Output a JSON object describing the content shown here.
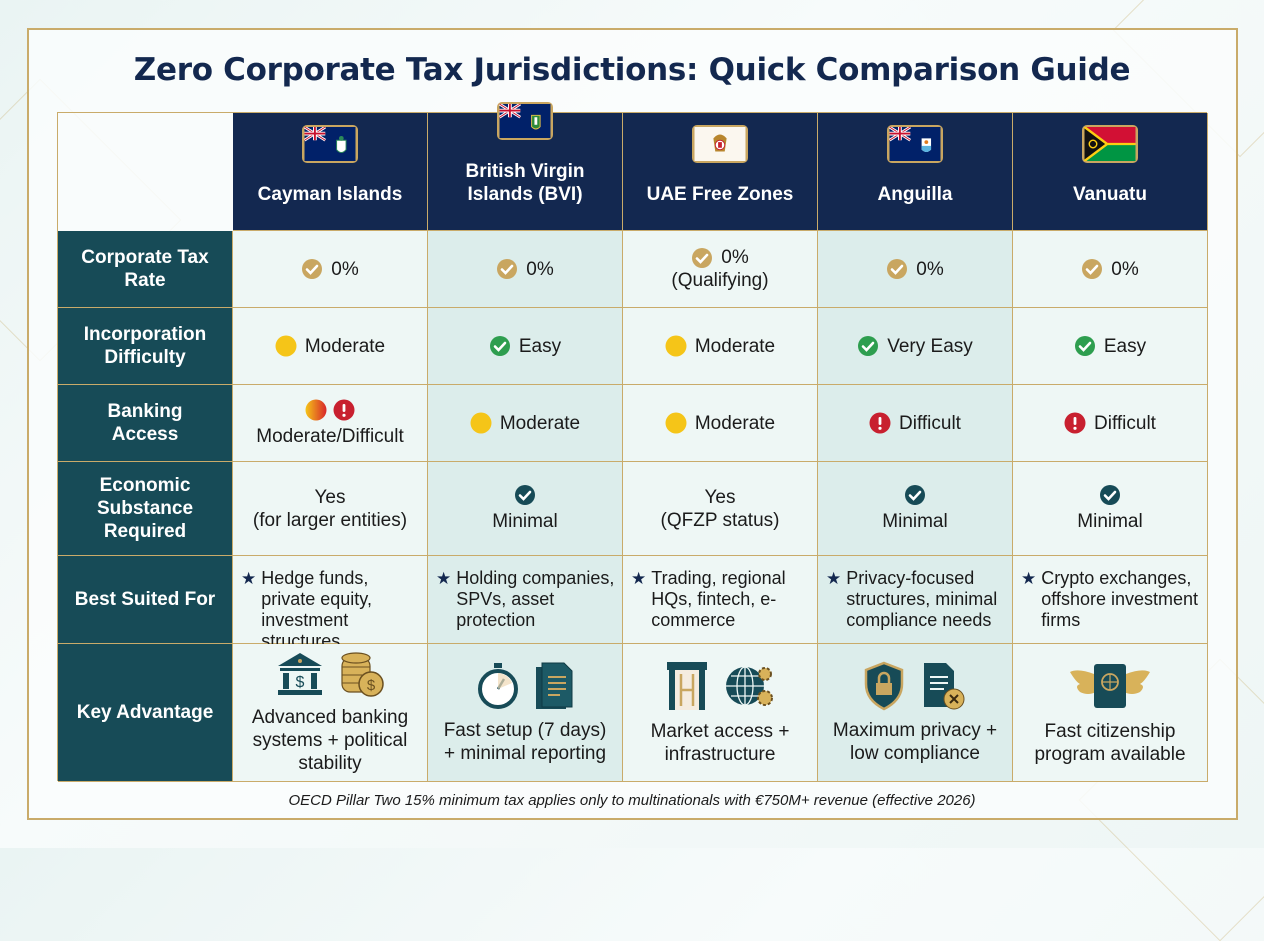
{
  "title": "Zero Corporate Tax Jurisdictions: Quick Comparison Guide",
  "colors": {
    "navy": "#132850",
    "teal": "#174b57",
    "gold": "#c9a660",
    "yellow": "#f5c518",
    "green": "#2e9e4f",
    "red": "#c8202f"
  },
  "columns": [
    {
      "name": "Cayman Islands",
      "flag": "cayman-flag"
    },
    {
      "name": "British Virgin Islands (BVI)",
      "flag": "bvi-flag"
    },
    {
      "name": "UAE Free Zones",
      "flag": "uae-emblem"
    },
    {
      "name": "Anguilla",
      "flag": "anguilla-flag"
    },
    {
      "name": "Vanuatu",
      "flag": "vanuatu-flag"
    }
  ],
  "rows": [
    {
      "label": "Corporate Tax Rate",
      "type": "inline",
      "cells": [
        {
          "icons": [
            "gold-check"
          ],
          "text": "0%"
        },
        {
          "icons": [
            "gold-check"
          ],
          "text": "0%"
        },
        {
          "icons": [
            "gold-check"
          ],
          "text": "0%",
          "sub": "(Qualifying)"
        },
        {
          "icons": [
            "gold-check"
          ],
          "text": "0%"
        },
        {
          "icons": [
            "gold-check"
          ],
          "text": "0%"
        }
      ]
    },
    {
      "label": "Incorporation Difficulty",
      "type": "inline",
      "cells": [
        {
          "icons": [
            "yellow-dot"
          ],
          "text": "Moderate"
        },
        {
          "icons": [
            "green-check"
          ],
          "text": "Easy"
        },
        {
          "icons": [
            "yellow-dot"
          ],
          "text": "Moderate"
        },
        {
          "icons": [
            "green-check"
          ],
          "text": "Very Easy"
        },
        {
          "icons": [
            "green-check"
          ],
          "text": "Easy"
        }
      ]
    },
    {
      "label": "Banking Access",
      "type": "inline",
      "cells": [
        {
          "icons": [
            "yellow-red-dot",
            "red-exclamation"
          ],
          "text": "Moderate/Difficult",
          "stack": true
        },
        {
          "icons": [
            "yellow-dot"
          ],
          "text": "Moderate"
        },
        {
          "icons": [
            "yellow-dot"
          ],
          "text": "Moderate"
        },
        {
          "icons": [
            "red-exclamation"
          ],
          "text": "Difficult"
        },
        {
          "icons": [
            "red-exclamation"
          ],
          "text": "Difficult"
        }
      ]
    },
    {
      "label": "Economic Substance Required",
      "type": "stacked",
      "cells": [
        {
          "icons": [],
          "text": "Yes",
          "sub": "(for larger entities)"
        },
        {
          "icons": [
            "teal-check"
          ],
          "text": "Minimal"
        },
        {
          "icons": [],
          "text": "Yes",
          "sub": "(QFZP status)"
        },
        {
          "icons": [
            "teal-check"
          ],
          "text": "Minimal"
        },
        {
          "icons": [
            "teal-check"
          ],
          "text": "Minimal"
        }
      ]
    },
    {
      "label": "Best Suited For",
      "type": "star",
      "cells": [
        {
          "text": "Hedge funds, private equity, investment structures"
        },
        {
          "text": "Holding companies, SPVs, asset protection"
        },
        {
          "text": "Trading, regional HQs, fintech, e-commerce"
        },
        {
          "text": "Privacy-focused structures, minimal compliance needs"
        },
        {
          "text": "Crypto exchanges, offshore investment firms"
        }
      ]
    },
    {
      "label": "Key Advantage",
      "type": "adv",
      "cells": [
        {
          "icons": [
            "bank-icon",
            "coins-icon"
          ],
          "text": "Advanced banking systems + political stability"
        },
        {
          "icons": [
            "stopwatch-icon",
            "document-icon"
          ],
          "text": "Fast setup (7 days) + minimal reporting"
        },
        {
          "icons": [
            "gate-icon",
            "globe-gears-icon"
          ],
          "text": "Market access + infrastructure"
        },
        {
          "icons": [
            "shield-lock-icon",
            "document-x-icon"
          ],
          "text": "Maximum privacy + low compliance"
        },
        {
          "icons": [
            "winged-passport-icon"
          ],
          "text": "Fast citizenship program available"
        }
      ]
    }
  ],
  "footnote": "OECD Pillar Two 15% minimum tax applies only to multinationals with €750M+ revenue (effective 2026)"
}
